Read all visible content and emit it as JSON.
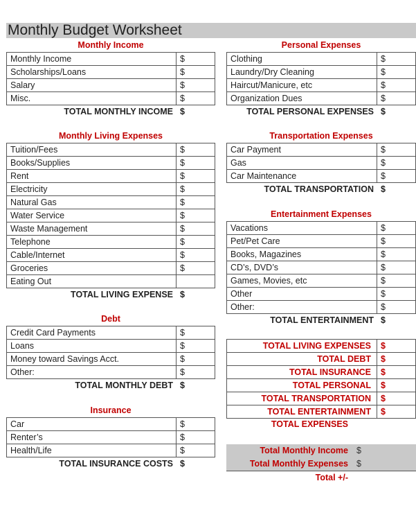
{
  "title": "Monthly Budget Worksheet",
  "sections": [
    {
      "id": "monthly-income",
      "header": "Monthly Income",
      "rows": [
        {
          "label": "Monthly Income",
          "value": "$"
        },
        {
          "label": "Scholarships/Loans",
          "value": "$"
        },
        {
          "label": "Salary",
          "value": "$"
        },
        {
          "label": "Misc.",
          "value": "$"
        }
      ],
      "total": {
        "label": "TOTAL MONTHLY INCOME",
        "value": "$"
      }
    },
    {
      "id": "living-expenses",
      "header": "Monthly Living Expenses",
      "rows": [
        {
          "label": "Tuition/Fees",
          "value": "$"
        },
        {
          "label": "Books/Supplies",
          "value": "$"
        },
        {
          "label": "Rent",
          "value": "$"
        },
        {
          "label": "Electricity",
          "value": "$"
        },
        {
          "label": "Natural Gas",
          "value": "$"
        },
        {
          "label": "Water Service",
          "value": "$"
        },
        {
          "label": "Waste Management",
          "value": "$"
        },
        {
          "label": "Telephone",
          "value": "$"
        },
        {
          "label": "Cable/Internet",
          "value": "$"
        },
        {
          "label": "Groceries",
          "value": "$"
        },
        {
          "label": "Eating Out",
          "value": ""
        }
      ],
      "total": {
        "label": "TOTAL LIVING EXPENSE",
        "value": "$"
      }
    },
    {
      "id": "debt",
      "header": "Debt",
      "rows": [
        {
          "label": "Credit Card Payments",
          "value": "$"
        },
        {
          "label": "Loans",
          "value": "$"
        },
        {
          "label": "Money toward Savings Acct.",
          "value": "$"
        },
        {
          "label": "Other:",
          "value": "$"
        }
      ],
      "total": {
        "label": "TOTAL MONTHLY DEBT",
        "value": "$"
      }
    },
    {
      "id": "insurance",
      "header": "Insurance",
      "rows": [
        {
          "label": "Car",
          "value": "$"
        },
        {
          "label": "Renter’s",
          "value": "$"
        },
        {
          "label": "Health/Life",
          "value": "$"
        }
      ],
      "total": {
        "label": "TOTAL INSURANCE COSTS",
        "value": "$"
      }
    },
    {
      "id": "personal-expenses",
      "header": "Personal Expenses",
      "rows": [
        {
          "label": "Clothing",
          "value": "$"
        },
        {
          "label": "Laundry/Dry Cleaning",
          "value": "$"
        },
        {
          "label": "Haircut/Manicure, etc",
          "value": "$"
        },
        {
          "label": "Organization Dues",
          "value": "$"
        }
      ],
      "total": {
        "label": "TOTAL PERSONAL EXPENSES",
        "value": "$"
      }
    },
    {
      "id": "transportation-expenses",
      "header": "Transportation Expenses",
      "rows": [
        {
          "label": "Car Payment",
          "value": "$"
        },
        {
          "label": "Gas",
          "value": "$"
        },
        {
          "label": "Car Maintenance",
          "value": "$"
        }
      ],
      "total": {
        "label": "TOTAL TRANSPORTATION",
        "value": "$"
      }
    },
    {
      "id": "entertainment-expenses",
      "header": "Entertainment Expenses",
      "rows": [
        {
          "label": "Vacations",
          "value": "$"
        },
        {
          "label": "Pet/Pet Care",
          "value": "$"
        },
        {
          "label": "Books, Magazines",
          "value": "$"
        },
        {
          "label": "CD’s, DVD’s",
          "value": "$"
        },
        {
          "label": "Games, Movies, etc",
          "value": "$"
        },
        {
          "label": "Other",
          "value": "$"
        },
        {
          "label": "Other:",
          "value": "$"
        }
      ],
      "total": {
        "label": "TOTAL ENTERTAINMENT",
        "value": "$"
      }
    }
  ],
  "summary": {
    "rows": [
      {
        "label": "TOTAL LIVING EXPENSES",
        "value": "$"
      },
      {
        "label": "TOTAL DEBT",
        "value": "$"
      },
      {
        "label": "TOTAL INSURANCE",
        "value": "$"
      },
      {
        "label": "TOTAL PERSONAL",
        "value": "$"
      },
      {
        "label": "TOTAL TRANSPORTATION",
        "value": "$"
      },
      {
        "label": "TOTAL ENTERTAINMENT",
        "value": "$"
      }
    ],
    "total_expenses": "TOTAL EXPENSES",
    "total_income": {
      "label": "Total Monthly Income",
      "value": "$"
    },
    "total_monthly_expenses": {
      "label": "Total Monthly Expenses",
      "value": "$"
    },
    "net": "Total +/-"
  },
  "colors": {
    "accent": "#c00000",
    "title_bar": "#c9c9c9"
  }
}
